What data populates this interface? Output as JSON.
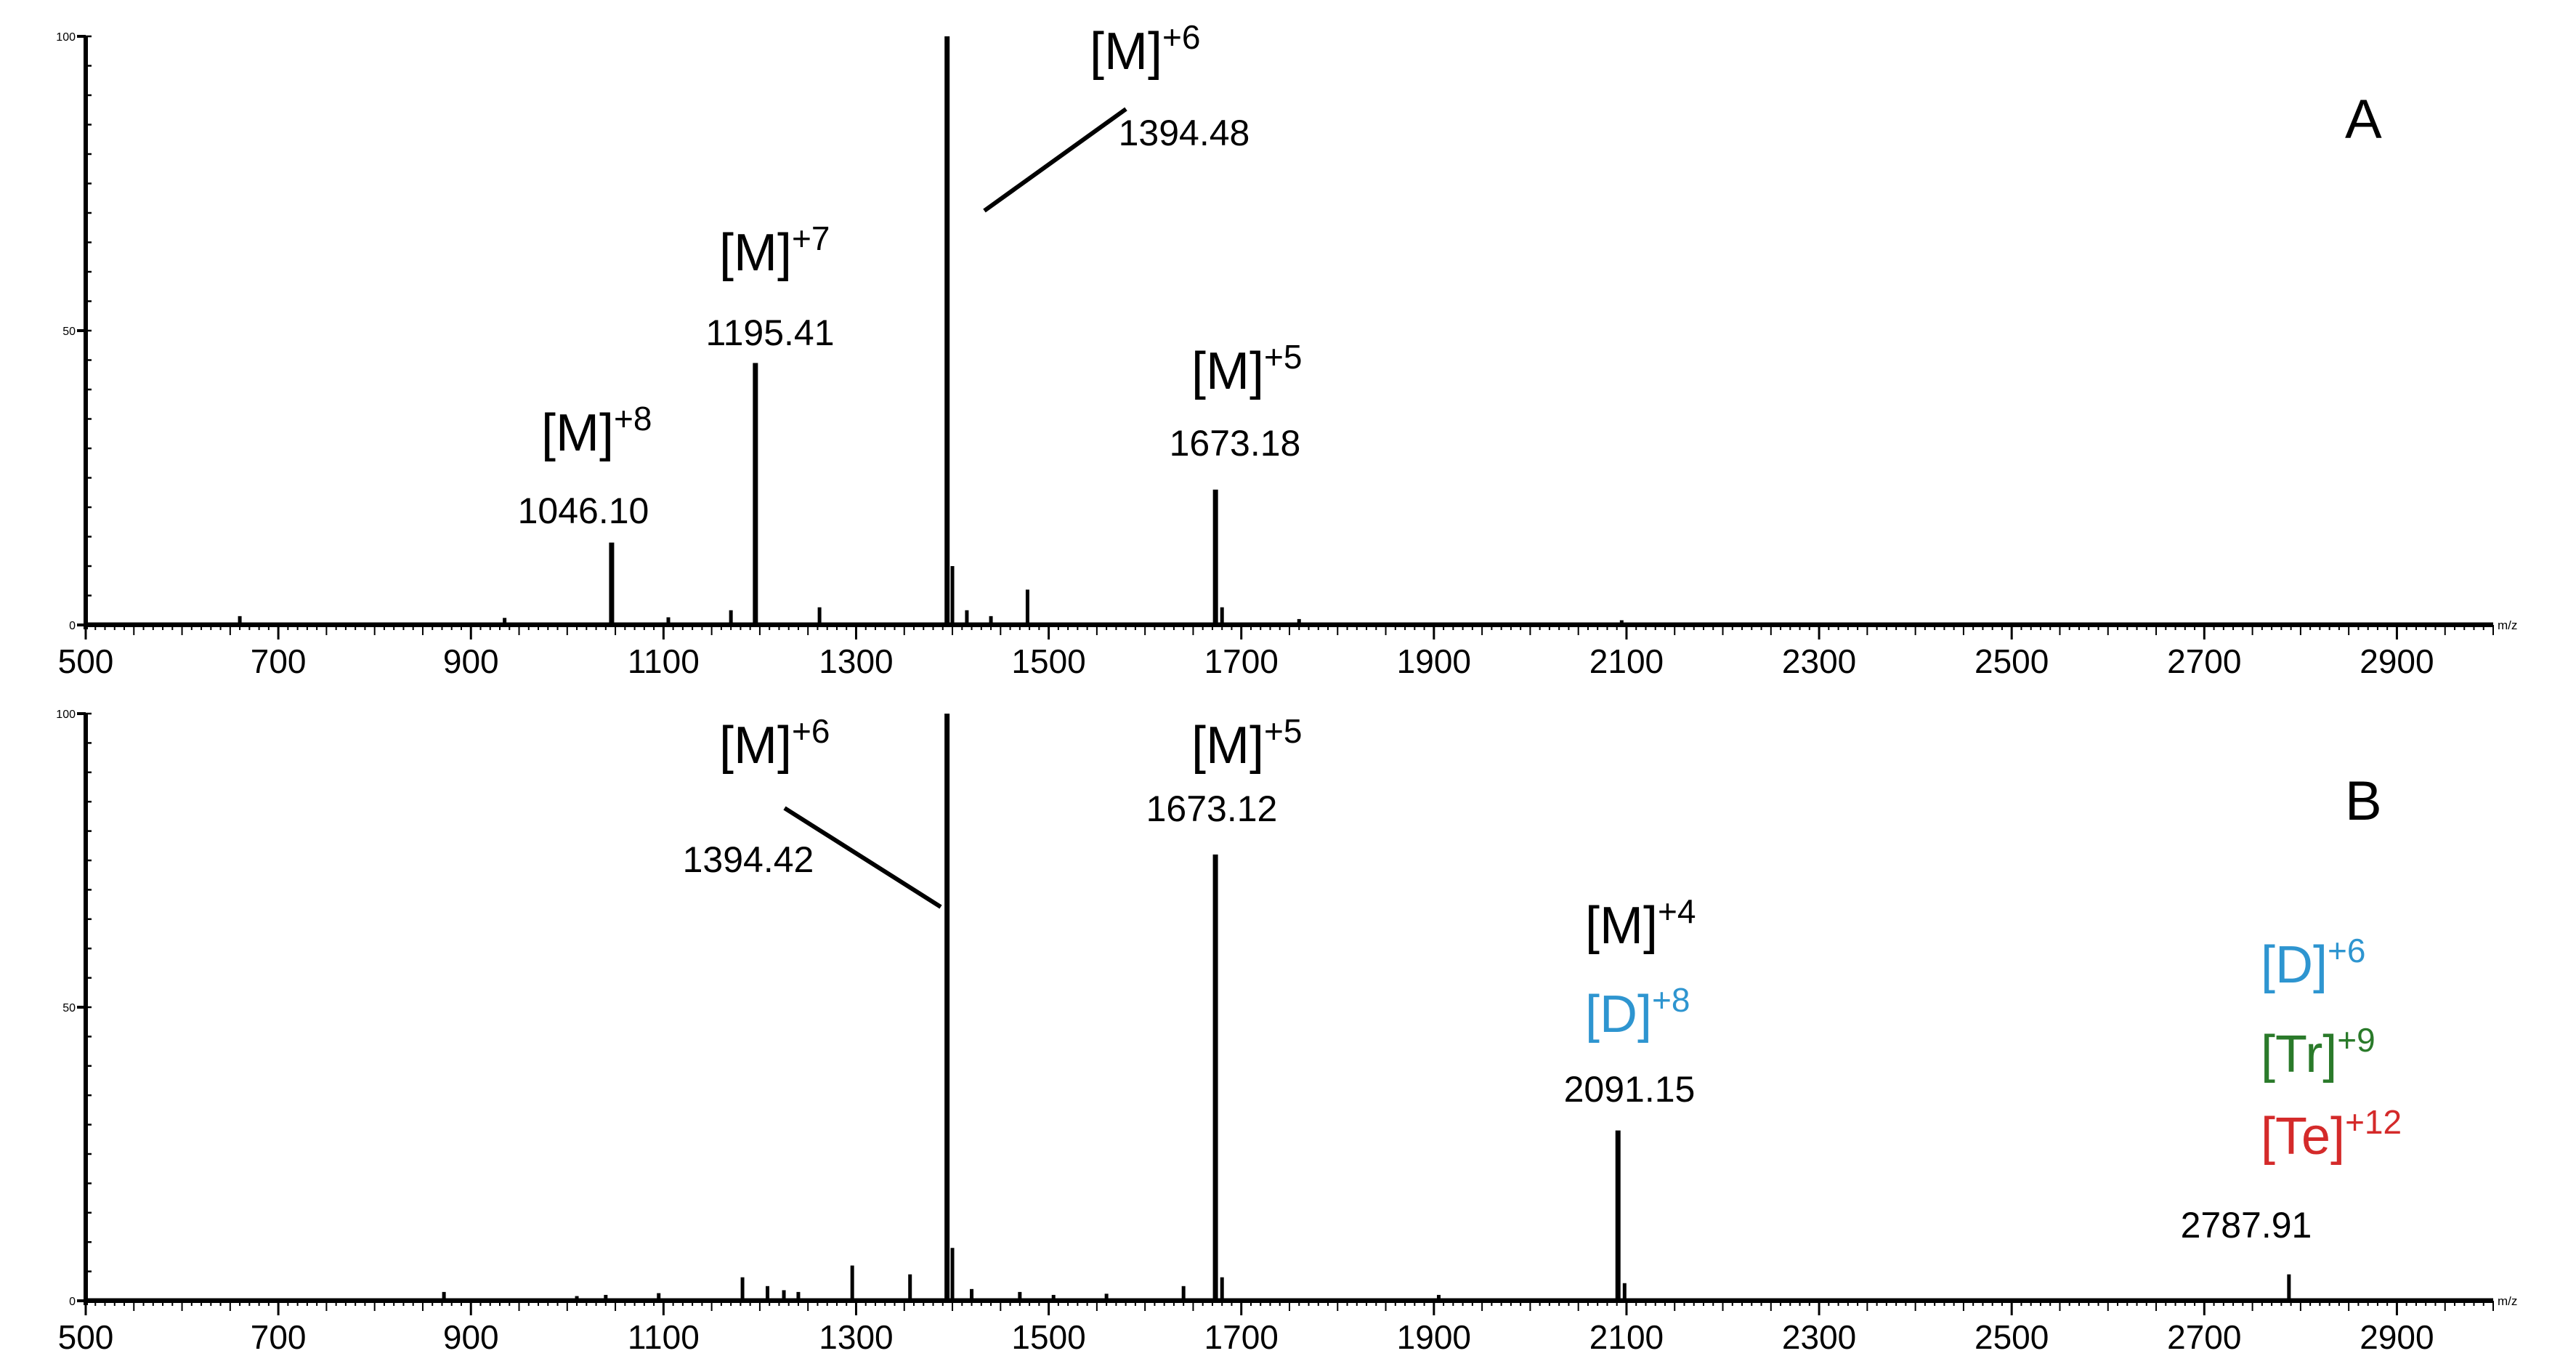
{
  "colors": {
    "black": "#000000",
    "blue": "#2e95d0",
    "green": "#2a7a2a",
    "red": "#d42a2a"
  },
  "chart_data": [
    {
      "type": "line",
      "panel_label": "A",
      "xlabel": "m/z",
      "x_ticks": [
        "500",
        "700",
        "900",
        "1100",
        "1300",
        "1500",
        "1700",
        "1900",
        "2100",
        "2300",
        "2500",
        "2700",
        "2900"
      ],
      "y_ticks": [
        "100",
        "50",
        "0"
      ],
      "xlim": [
        500,
        3000
      ],
      "ylim": [
        0,
        100
      ],
      "peaks": [
        {
          "x": 660,
          "y": 1.5
        },
        {
          "x": 935,
          "y": 1.2
        },
        {
          "x": 1046.1,
          "y": 14
        },
        {
          "x": 1105,
          "y": 1.3
        },
        {
          "x": 1170,
          "y": 2.5
        },
        {
          "x": 1195.41,
          "y": 44.5
        },
        {
          "x": 1262,
          "y": 3
        },
        {
          "x": 1394.48,
          "y": 100
        },
        {
          "x": 1400,
          "y": 10
        },
        {
          "x": 1415,
          "y": 2.5
        },
        {
          "x": 1440,
          "y": 1.5
        },
        {
          "x": 1478,
          "y": 6
        },
        {
          "x": 1673.18,
          "y": 23
        },
        {
          "x": 1680,
          "y": 3
        },
        {
          "x": 1760,
          "y": 1
        },
        {
          "x": 2095,
          "y": 0.8
        }
      ],
      "annotations": [
        {
          "ion": "[M]",
          "charge": "+8",
          "value": "1046.10",
          "color": "black"
        },
        {
          "ion": "[M]",
          "charge": "+7",
          "value": "1195.41",
          "color": "black"
        },
        {
          "ion": "[M]",
          "charge": "+6",
          "value": "1394.48",
          "color": "black"
        },
        {
          "ion": "[M]",
          "charge": "+5",
          "value": "1673.18",
          "color": "black"
        }
      ]
    },
    {
      "type": "line",
      "panel_label": "B",
      "xlabel": "m/z",
      "x_ticks": [
        "500",
        "700",
        "900",
        "1100",
        "1300",
        "1500",
        "1700",
        "1900",
        "2100",
        "2300",
        "2500",
        "2700",
        "2900"
      ],
      "y_ticks": [
        "100",
        "50",
        "0"
      ],
      "xlim": [
        500,
        3000
      ],
      "ylim": [
        0,
        100
      ],
      "peaks": [
        {
          "x": 872,
          "y": 1.5
        },
        {
          "x": 1010,
          "y": 0.8
        },
        {
          "x": 1040,
          "y": 1
        },
        {
          "x": 1095,
          "y": 1.3
        },
        {
          "x": 1182,
          "y": 4
        },
        {
          "x": 1208,
          "y": 2.5
        },
        {
          "x": 1225,
          "y": 1.8
        },
        {
          "x": 1240,
          "y": 1.5
        },
        {
          "x": 1296,
          "y": 6
        },
        {
          "x": 1356,
          "y": 4.5
        },
        {
          "x": 1394.42,
          "y": 100
        },
        {
          "x": 1400,
          "y": 9
        },
        {
          "x": 1420,
          "y": 2
        },
        {
          "x": 1470,
          "y": 1.5
        },
        {
          "x": 1505,
          "y": 1
        },
        {
          "x": 1560,
          "y": 1.2
        },
        {
          "x": 1640,
          "y": 2.5
        },
        {
          "x": 1673.12,
          "y": 76
        },
        {
          "x": 1680,
          "y": 4
        },
        {
          "x": 1905,
          "y": 1
        },
        {
          "x": 2091.15,
          "y": 29
        },
        {
          "x": 2098,
          "y": 3
        },
        {
          "x": 2787.91,
          "y": 4.5
        }
      ],
      "annotations": [
        {
          "ion": "[M]",
          "charge": "+6",
          "value": "1394.42",
          "color": "black"
        },
        {
          "ion": "[M]",
          "charge": "+5",
          "value": "1673.12",
          "color": "black"
        },
        {
          "ion": "[M]",
          "charge": "+4",
          "color": "black"
        },
        {
          "ion": "[D]",
          "charge": "+8",
          "value": "2091.15",
          "color": "blue"
        },
        {
          "ion": "[D]",
          "charge": "+6",
          "color": "blue"
        },
        {
          "ion": "[Tr]",
          "charge": "+9",
          "color": "green"
        },
        {
          "ion": "[Te]",
          "charge": "+12",
          "value": "2787.91",
          "color": "red"
        }
      ]
    }
  ]
}
